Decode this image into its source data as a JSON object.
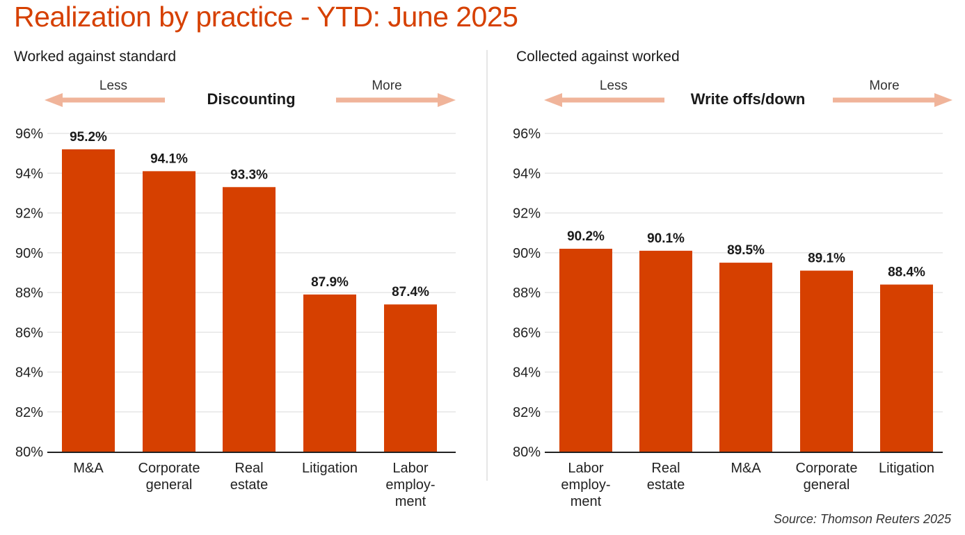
{
  "title": "Realization by practice - YTD: June 2025",
  "source": "Source: Thomson Reuters 2025",
  "colors": {
    "bar": "#d64000",
    "arrow": "#f0b49a",
    "title": "#d64000",
    "grid": "#e6e6e6",
    "axis": "#222222",
    "text": "#1a1a1a"
  },
  "chart_data": [
    {
      "type": "bar",
      "title": "Worked against standard",
      "annotation": {
        "center": "Discounting",
        "left": "Less",
        "right": "More"
      },
      "categories": [
        [
          "M&A"
        ],
        [
          "Corporate",
          "general"
        ],
        [
          "Real",
          "estate"
        ],
        [
          "Litigation"
        ],
        [
          "Labor",
          "employ-",
          "ment"
        ]
      ],
      "values": [
        95.2,
        94.1,
        93.3,
        87.9,
        87.4
      ],
      "value_labels": [
        "95.2%",
        "94.1%",
        "93.3%",
        "87.9%",
        "87.4%"
      ],
      "ylim": [
        80,
        96
      ],
      "yticks": [
        80,
        82,
        84,
        86,
        88,
        90,
        92,
        94,
        96
      ],
      "ytick_labels": [
        "80%",
        "82%",
        "84%",
        "86%",
        "88%",
        "90%",
        "92%",
        "94%",
        "96%"
      ],
      "xlabel": "",
      "ylabel": "",
      "grid": true
    },
    {
      "type": "bar",
      "title": "Collected against worked",
      "annotation": {
        "center": "Write offs/down",
        "left": "Less",
        "right": "More"
      },
      "categories": [
        [
          "Labor",
          "employ-",
          "ment"
        ],
        [
          "Real",
          "estate"
        ],
        [
          "M&A"
        ],
        [
          "Corporate",
          "general"
        ],
        [
          "Litigation"
        ]
      ],
      "values": [
        90.2,
        90.1,
        89.5,
        89.1,
        88.4
      ],
      "value_labels": [
        "90.2%",
        "90.1%",
        "89.5%",
        "89.1%",
        "88.4%"
      ],
      "ylim": [
        80,
        96
      ],
      "yticks": [
        80,
        82,
        84,
        86,
        88,
        90,
        92,
        94,
        96
      ],
      "ytick_labels": [
        "80%",
        "82%",
        "84%",
        "86%",
        "88%",
        "90%",
        "92%",
        "94%",
        "96%"
      ],
      "xlabel": "",
      "ylabel": "",
      "grid": true
    }
  ]
}
